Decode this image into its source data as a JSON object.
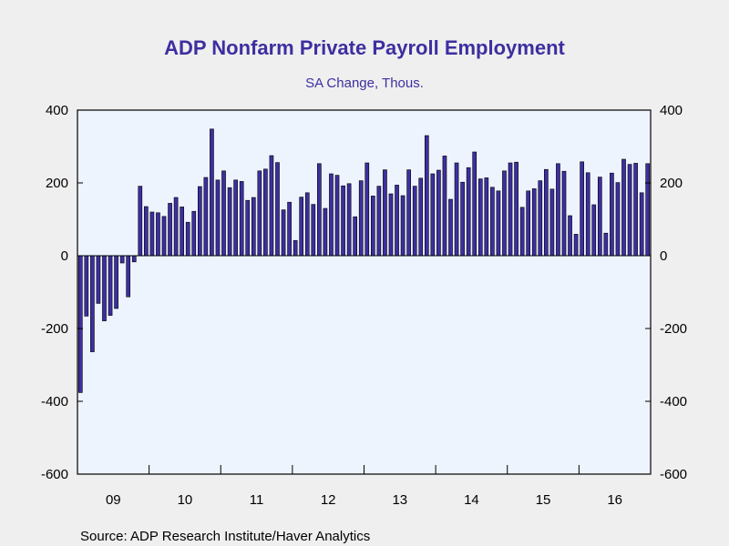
{
  "chart_data": {
    "type": "bar",
    "title": "ADP Nonfarm Private Payroll Employment",
    "subtitle": "SA Change, Thous.",
    "source": "Source:  ADP Research Institute/Haver Analytics",
    "xlabel": "",
    "ylabel": "",
    "ylim": [
      -600,
      400
    ],
    "yticks": [
      400,
      200,
      0,
      -200,
      -400,
      -600
    ],
    "ytick_labels": [
      "400",
      "200",
      "0",
      "-200",
      "-400",
      "-600"
    ],
    "xtick_labels": [
      "09",
      "10",
      "11",
      "12",
      "13",
      "14",
      "15",
      "16"
    ],
    "xtick_years": [
      2009,
      2010,
      2011,
      2012,
      2013,
      2014,
      2015,
      2016
    ],
    "start_year": 2009,
    "start_month": 1,
    "end_year": 2017,
    "grid": false,
    "bar_color": "#3d2fa0",
    "plot_background": "#eef4fe",
    "frame_color": "#000000",
    "series": [
      {
        "values": [
          -376,
          -166,
          -264,
          -131,
          -179,
          -164,
          -145,
          -20,
          -113,
          -17,
          191,
          135,
          120,
          118,
          108,
          144,
          160,
          134,
          92,
          122,
          190,
          215,
          348,
          208,
          233,
          187,
          208,
          204,
          152,
          160,
          233,
          238,
          275,
          256,
          126,
          147,
          42,
          161,
          173,
          141,
          253,
          130,
          225,
          221,
          192,
          198,
          107,
          206,
          255,
          164,
          191,
          236,
          170,
          194,
          165,
          236,
          191,
          213,
          330,
          225,
          235,
          274,
          155,
          255,
          202,
          242,
          285,
          211,
          214,
          188,
          178,
          233,
          255,
          257,
          133,
          178,
          184,
          206,
          237,
          183,
          253,
          232,
          110,
          59,
          258,
          228,
          140,
          216,
          62,
          227,
          201,
          265,
          251,
          254,
          173,
          253
        ]
      }
    ]
  }
}
